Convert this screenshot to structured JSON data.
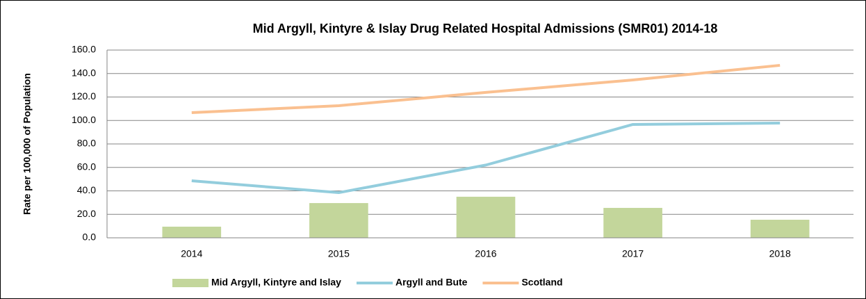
{
  "chart_data": {
    "type": "combo",
    "title": "Mid Argyll, Kintyre & Islay Drug Related Hospital Admissions (SMR01) 2014-18",
    "y_label": "Rate per 100,000 of Population",
    "categories": [
      "2014",
      "2015",
      "2016",
      "2017",
      "2018"
    ],
    "series": [
      {
        "name": "Mid Argyll, Kintyre and Islay",
        "type": "bar",
        "color": "#c3d69b",
        "values": [
          9.5,
          29.6,
          35.0,
          25.5,
          15.4
        ]
      },
      {
        "name": "Argyll and Bute",
        "type": "line",
        "color": "#93cddd",
        "values": [
          48.6,
          38.5,
          62.0,
          96.6,
          97.8
        ]
      },
      {
        "name": "Scotland",
        "type": "line",
        "color": "#fac090",
        "values": [
          106.7,
          112.6,
          123.9,
          134.5,
          147.0
        ]
      }
    ],
    "ylim": [
      0,
      160
    ],
    "yticks": [
      {
        "value": 0,
        "label": "0.0"
      },
      {
        "value": 20,
        "label": "20.0"
      },
      {
        "value": 40,
        "label": "40.0"
      },
      {
        "value": 60,
        "label": "60.0"
      },
      {
        "value": 80,
        "label": "80.0"
      },
      {
        "value": 100,
        "label": "100.0"
      },
      {
        "value": 120,
        "label": "120.0"
      },
      {
        "value": 140,
        "label": "140.0"
      },
      {
        "value": 160,
        "label": "160.0"
      }
    ],
    "grid": true,
    "legend": "bottom"
  }
}
